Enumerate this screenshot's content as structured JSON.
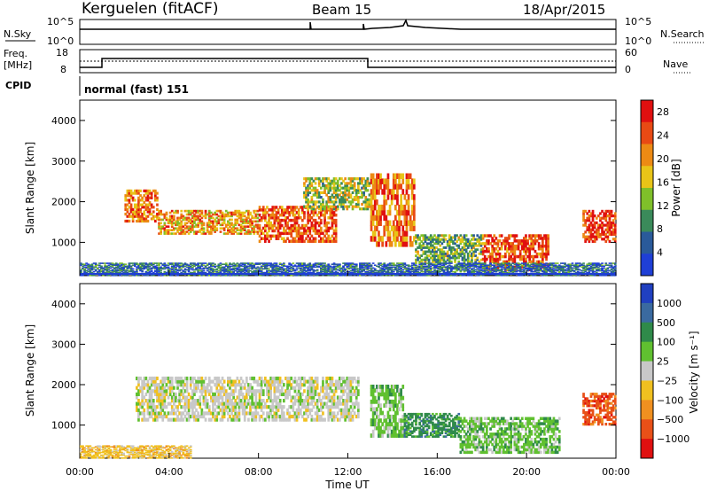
{
  "header": {
    "station": "Kerguelen (fitACF)",
    "beam": "Beam 15",
    "date": "18/Apr/2015"
  },
  "nsky_panel": {
    "label": "N.Sky",
    "right_label": "N.Search",
    "y_top_label": "10^5",
    "y_bottom_label": "10^0",
    "right_top_label": "10^5",
    "right_bottom_label": "10^0"
  },
  "freq_panel": {
    "label_line1": "Freq.",
    "label_line2": "[MHz]",
    "right_label": "Nave",
    "y_top_label": "18",
    "y_bottom_label": "8",
    "right_top_label": "60",
    "right_bottom_label": "0"
  },
  "cpid_panel": {
    "label": "CPID",
    "program": "normal (fast) 151"
  },
  "time_axis": {
    "label": "Time UT",
    "ticks": [
      "00:00",
      "04:00",
      "08:00",
      "12:00",
      "16:00",
      "20:00",
      "00:00"
    ]
  },
  "chart_data": [
    {
      "type": "heatmap",
      "name": "power",
      "ylabel": "Slant Range [km]",
      "xlabel": "Time UT",
      "yticks": [
        "1000",
        "2000",
        "3000",
        "4000"
      ],
      "ylim": [
        180,
        4500
      ],
      "xlim_hours": [
        0,
        24
      ],
      "colorbar": {
        "label": "Power [dB]",
        "ticks": [
          "4",
          "8",
          "12",
          "16",
          "20",
          "24",
          "28"
        ],
        "range": [
          0,
          30
        ],
        "colors": [
          "#1f3fd6",
          "#2a5a9a",
          "#3a8a5a",
          "#7fbf2a",
          "#e8c418",
          "#ec8a14",
          "#e84a14",
          "#e01010"
        ]
      },
      "bands": [
        {
          "t0": 2.0,
          "t1": 3.5,
          "r0": 1500,
          "r1": 2300,
          "level": 22
        },
        {
          "t0": 3.5,
          "t1": 8.0,
          "r0": 1200,
          "r1": 1800,
          "level": 20
        },
        {
          "t0": 8.0,
          "t1": 11.5,
          "r0": 1000,
          "r1": 1900,
          "level": 24
        },
        {
          "t0": 10.0,
          "t1": 13.0,
          "r0": 1800,
          "r1": 2600,
          "level": 14
        },
        {
          "t0": 13.0,
          "t1": 15.0,
          "r0": 900,
          "r1": 2700,
          "level": 22
        },
        {
          "t0": 15.0,
          "t1": 18.0,
          "r0": 500,
          "r1": 1200,
          "level": 12
        },
        {
          "t0": 18.0,
          "t1": 21.0,
          "r0": 300,
          "r1": 1200,
          "level": 25
        },
        {
          "t0": 22.5,
          "t1": 24.0,
          "r0": 1000,
          "r1": 1800,
          "level": 26
        },
        {
          "t0": 0.0,
          "t1": 24.0,
          "r0": 180,
          "r1": 500,
          "level": 6
        }
      ]
    },
    {
      "type": "heatmap",
      "name": "velocity",
      "ylabel": "Slant Range [km]",
      "xlabel": "Time UT",
      "yticks": [
        "1000",
        "2000",
        "3000",
        "4000"
      ],
      "ylim": [
        180,
        4500
      ],
      "xlim_hours": [
        0,
        24
      ],
      "colorbar": {
        "label": "Velocity [m s⁻¹]",
        "ticks": [
          "1000",
          "500",
          "100",
          "25",
          "−25",
          "−100",
          "−500",
          "−1000"
        ],
        "colors": [
          "#2040c0",
          "#3a6aa0",
          "#2f8a4a",
          "#60c030",
          "#c8c8c8",
          "#f0c020",
          "#f09020",
          "#e85018",
          "#e01010"
        ]
      },
      "bands": [
        {
          "t0": 2.5,
          "t1": 12.5,
          "r0": 1100,
          "r1": 2200,
          "level": 4
        },
        {
          "t0": 13.0,
          "t1": 14.5,
          "r0": 700,
          "r1": 2000,
          "level": 3
        },
        {
          "t0": 14.5,
          "t1": 17.0,
          "r0": 700,
          "r1": 1300,
          "level": 2
        },
        {
          "t0": 17.0,
          "t1": 21.5,
          "r0": 300,
          "r1": 1200,
          "level": 3
        },
        {
          "t0": 22.5,
          "t1": 24.0,
          "r0": 1000,
          "r1": 1800,
          "level": 7
        },
        {
          "t0": 0.0,
          "t1": 5.0,
          "r0": 180,
          "r1": 500,
          "level": 5
        }
      ]
    }
  ]
}
